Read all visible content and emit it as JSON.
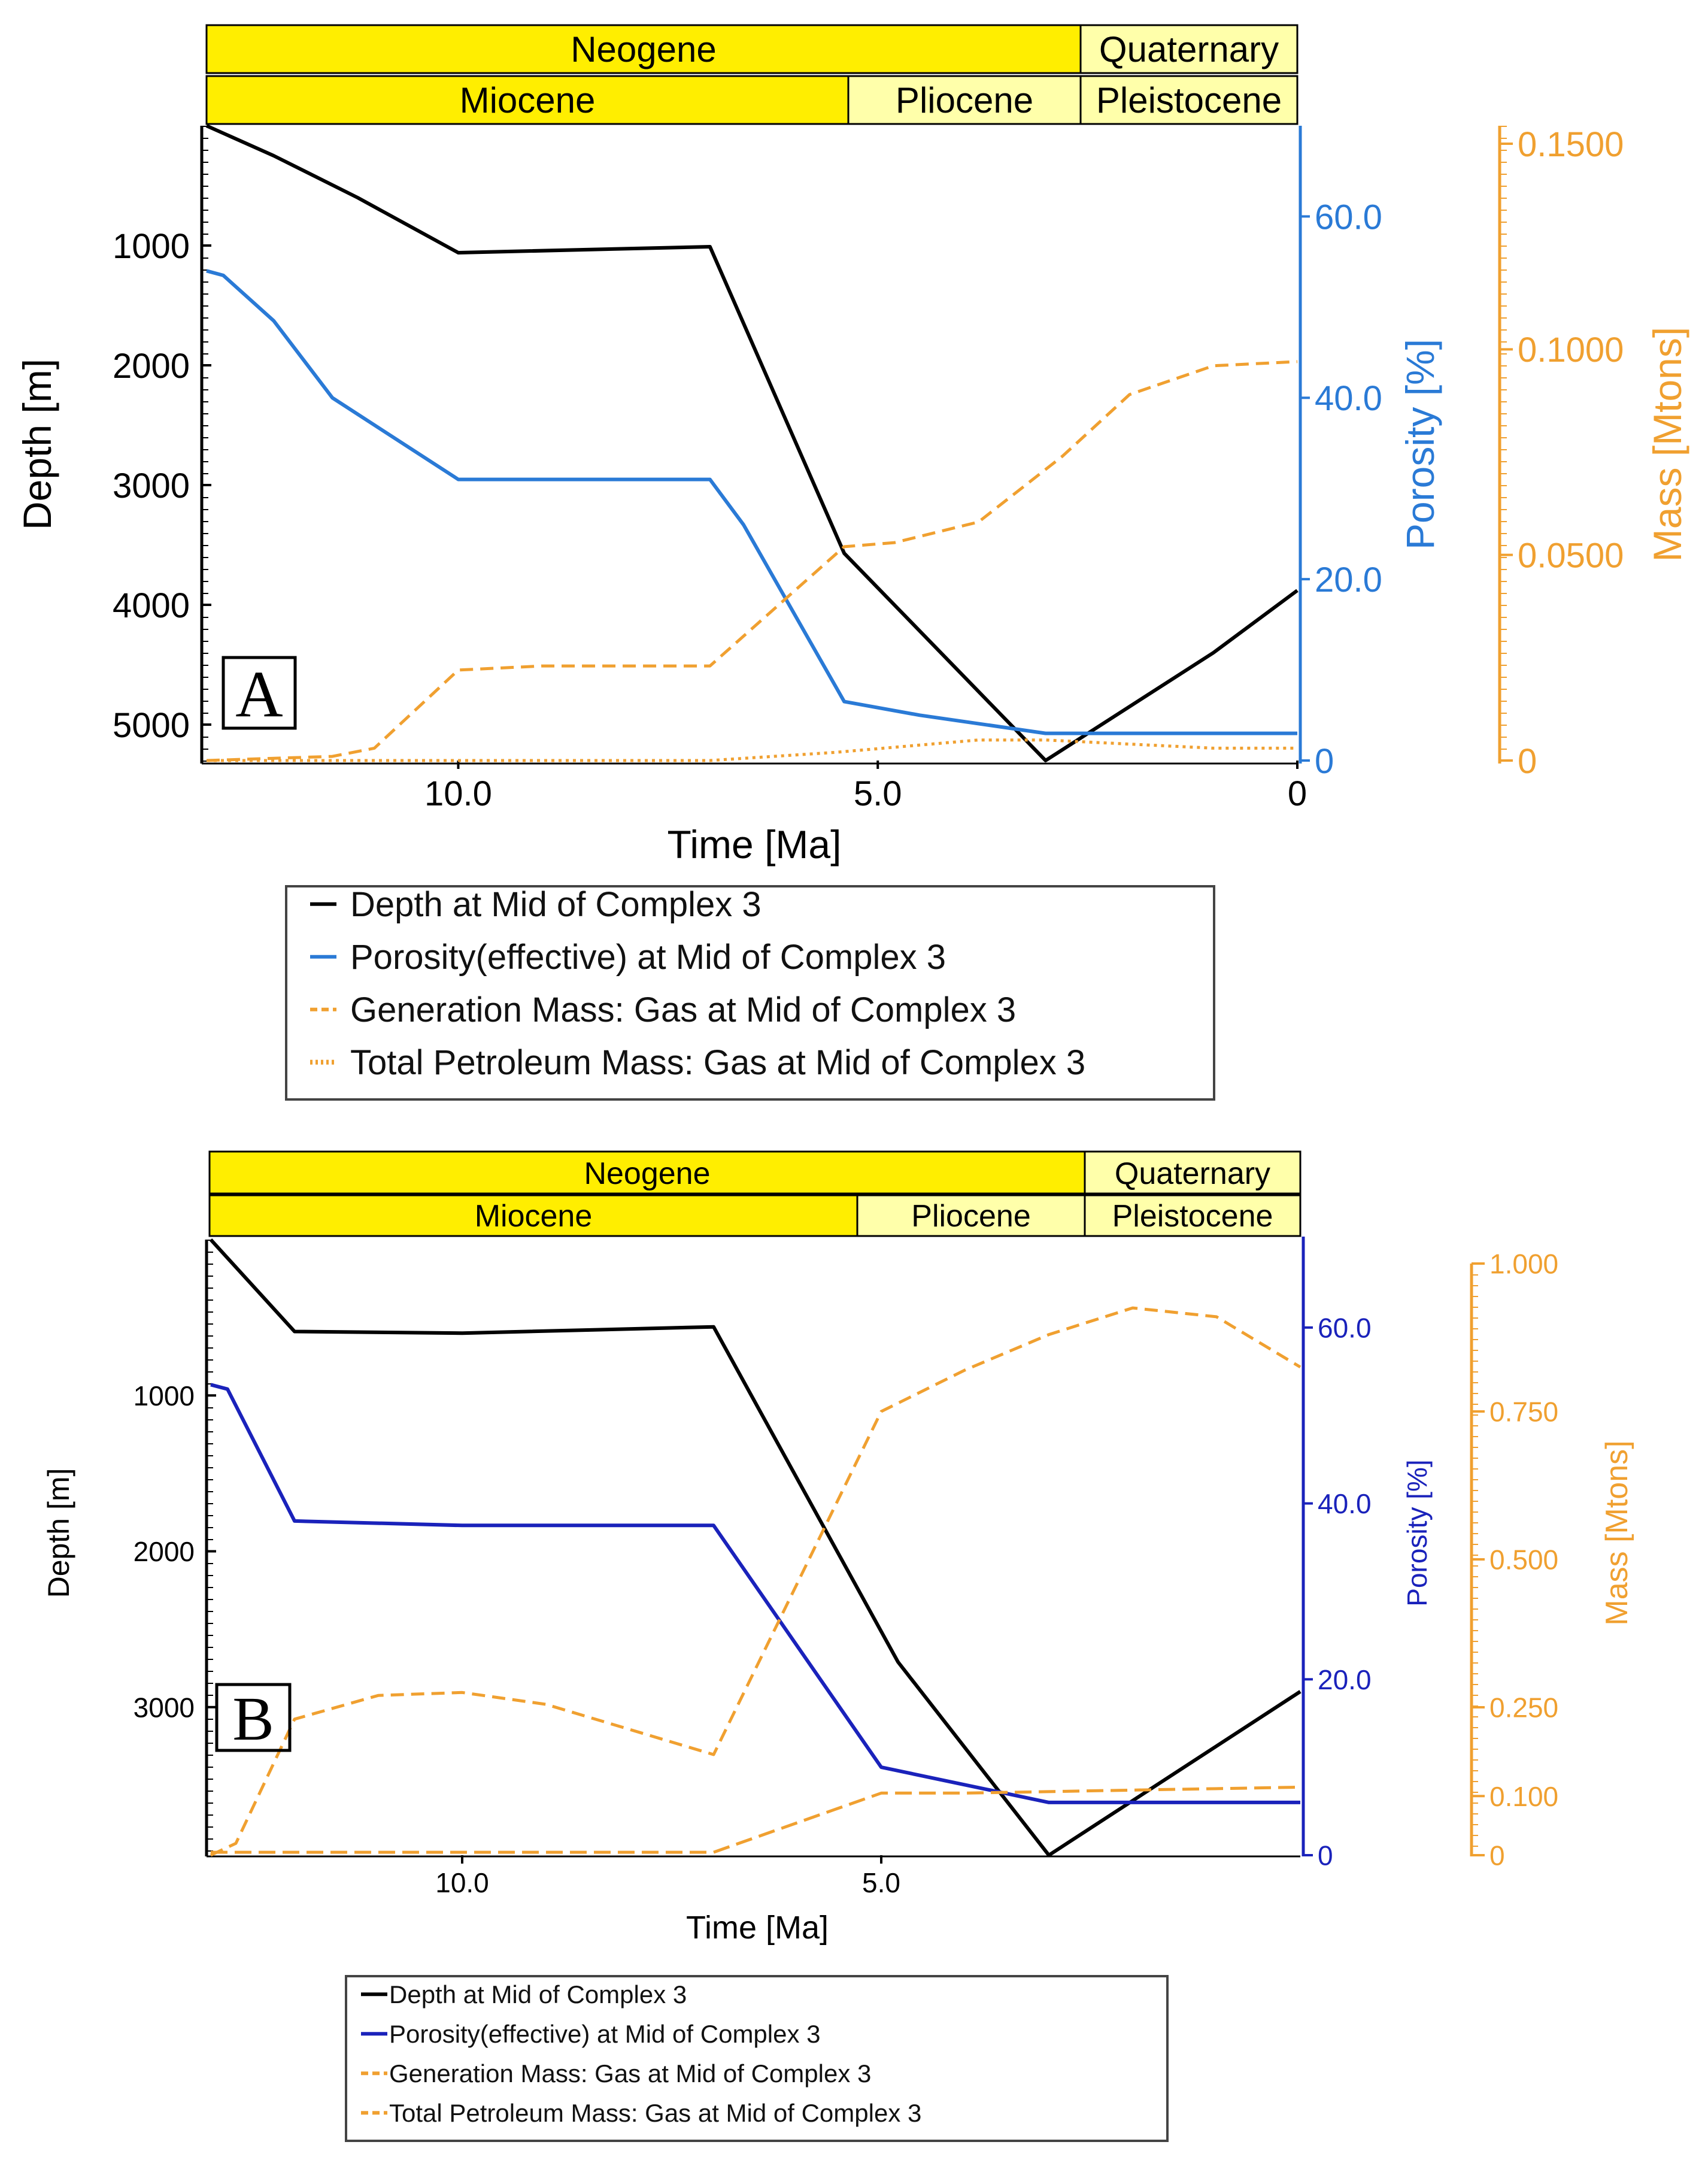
{
  "chart_data": [
    {
      "panel": "A",
      "type": "line",
      "periods": {
        "row1": [
          "Neogene",
          "Quaternary"
        ],
        "row2": [
          "Miocene",
          "Pliocene",
          "Pleistocene"
        ]
      },
      "xlabel": "Time [Ma]",
      "xlim": [
        13.0,
        0.0
      ],
      "xticks": [
        {
          "v": 10.0,
          "label": "10.0"
        },
        {
          "v": 5.0,
          "label": "5.0"
        },
        {
          "v": 0.0,
          "label": "0"
        }
      ],
      "y_left": {
        "label": "Depth [m]",
        "lim": [
          0,
          5300
        ],
        "inverted": true,
        "ticks": [
          {
            "v": 1000,
            "label": "1000"
          },
          {
            "v": 2000,
            "label": "2000"
          },
          {
            "v": 3000,
            "label": "3000"
          },
          {
            "v": 4000,
            "label": "4000"
          },
          {
            "v": 5000,
            "label": "5000"
          }
        ]
      },
      "y_right1": {
        "label": "Porosity [%]",
        "lim": [
          0,
          70
        ],
        "ticks": [
          {
            "v": 0,
            "label": "0"
          },
          {
            "v": 20,
            "label": "20.0"
          },
          {
            "v": 40,
            "label": "40.0"
          },
          {
            "v": 60,
            "label": "60.0"
          }
        ]
      },
      "y_right2": {
        "label": "Mass [Mtons]",
        "lim": [
          0,
          0.15
        ],
        "ticks": [
          {
            "v": 0,
            "label": "0"
          },
          {
            "v": 0.05,
            "label": "0.0500"
          },
          {
            "v": 0.1,
            "label": "0.1000"
          },
          {
            "v": 0.15,
            "label": "0.1500"
          }
        ]
      },
      "series": [
        {
          "name": "Depth at Mid of Complex 3",
          "axis": "left",
          "style": "solid",
          "color": "#000000",
          "x": [
            13.0,
            12.2,
            11.2,
            10.0,
            7.0,
            6.6,
            5.4,
            3.0,
            1.0,
            0.0
          ],
          "y": [
            0,
            250,
            600,
            1060,
            1010,
            1650,
            3570,
            5300,
            4400,
            3880
          ]
        },
        {
          "name": "Porosity(effective) at Mid of Complex 3",
          "axis": "right1",
          "style": "solid",
          "color": "#2a7ad6",
          "x": [
            13.0,
            12.8,
            12.2,
            11.5,
            10.0,
            7.0,
            6.6,
            5.4,
            4.5,
            3.0,
            0.0
          ],
          "y": [
            54.0,
            53.5,
            48.5,
            40.0,
            31.0,
            31.0,
            26.0,
            6.5,
            5.0,
            3.0,
            3.0
          ]
        },
        {
          "name": "Generation Mass: Gas at Mid of Complex 3",
          "axis": "right2",
          "style": "dash",
          "color": "#f0a030",
          "x": [
            13.0,
            11.5,
            11.0,
            10.0,
            9.0,
            7.0,
            5.4,
            4.8,
            3.8,
            2.8,
            2.0,
            1.0,
            0.0
          ],
          "y": [
            0,
            0.001,
            0.003,
            0.022,
            0.023,
            0.023,
            0.052,
            0.053,
            0.058,
            0.074,
            0.089,
            0.096,
            0.097
          ]
        },
        {
          "name": "Total Petroleum Mass: Gas at Mid of Complex 3",
          "axis": "right2",
          "style": "dot",
          "color": "#f0a030",
          "x": [
            13.0,
            7.0,
            5.5,
            3.8,
            3.0,
            1.0,
            0.0
          ],
          "y": [
            0,
            0,
            0.002,
            0.005,
            0.005,
            0.003,
            0.003
          ]
        }
      ]
    },
    {
      "panel": "B",
      "type": "line",
      "periods": {
        "row1": [
          "Neogene",
          "Quaternary"
        ],
        "row2": [
          "Miocene",
          "Pliocene",
          "Pleistocene"
        ]
      },
      "xlabel": "Time [Ma]",
      "xlim": [
        13.0,
        0.0
      ],
      "xticks": [
        {
          "v": 10.0,
          "label": "10.0"
        },
        {
          "v": 5.0,
          "label": "5.0"
        }
      ],
      "y_left": {
        "label": "Depth [m]",
        "lim": [
          0,
          3950
        ],
        "inverted": true,
        "ticks": [
          {
            "v": 1000,
            "label": "1000"
          },
          {
            "v": 2000,
            "label": "2000"
          },
          {
            "v": 3000,
            "label": "3000"
          }
        ]
      },
      "y_right1": {
        "label": "Porosity [%]",
        "lim": [
          0,
          70
        ],
        "ticks": [
          {
            "v": 0,
            "label": "0"
          },
          {
            "v": 20,
            "label": "20.0"
          },
          {
            "v": 40,
            "label": "40.0"
          },
          {
            "v": 60,
            "label": "60.0"
          }
        ]
      },
      "y_right2": {
        "label": "Mass [Mtons]",
        "lim": [
          0,
          1.0
        ],
        "ticks": [
          {
            "v": 0,
            "label": "0"
          },
          {
            "v": 0.1,
            "label": "0.100"
          },
          {
            "v": 0.25,
            "label": "0.250"
          },
          {
            "v": 0.5,
            "label": "0.500"
          },
          {
            "v": 0.75,
            "label": "0.750"
          },
          {
            "v": 1.0,
            "label": "1.000"
          }
        ]
      },
      "series": [
        {
          "name": "Depth at Mid of Complex 3",
          "axis": "left",
          "style": "solid",
          "color": "#000000",
          "x": [
            13.0,
            12.0,
            10.0,
            7.0,
            4.8,
            3.0,
            0.0
          ],
          "y": [
            0,
            590,
            600,
            560,
            2710,
            3950,
            2900
          ]
        },
        {
          "name": "Porosity(effective) at Mid of Complex 3",
          "axis": "right1",
          "style": "solid",
          "color": "#1a22bb",
          "x": [
            13.0,
            12.8,
            12.0,
            10.0,
            7.0,
            5.0,
            3.0,
            0.0
          ],
          "y": [
            53.5,
            53.0,
            38.0,
            37.5,
            37.5,
            10.0,
            6.0,
            6.0
          ]
        },
        {
          "name": "Generation Mass: Gas at Mid of Complex 3",
          "axis": "right2",
          "style": "dash",
          "color": "#f0a030",
          "x": [
            13.0,
            12.7,
            12.0,
            11.0,
            10.0,
            9.0,
            7.0,
            5.0,
            4.0,
            3.0,
            2.0,
            1.0,
            0.0
          ],
          "y": [
            0,
            0.02,
            0.23,
            0.27,
            0.275,
            0.255,
            0.17,
            0.75,
            0.82,
            0.88,
            0.925,
            0.91,
            0.825
          ]
        },
        {
          "name": "Total Petroleum Mass: Gas at Mid of Complex 3",
          "axis": "right2",
          "style": "dash2",
          "color": "#f0a030",
          "x": [
            13.0,
            7.0,
            5.0,
            4.0,
            2.0,
            0.0
          ],
          "y": [
            0.005,
            0.005,
            0.105,
            0.105,
            0.11,
            0.115
          ]
        }
      ]
    }
  ],
  "legend_marker_chars": [
    "—",
    "—",
    "- -",
    "……"
  ]
}
